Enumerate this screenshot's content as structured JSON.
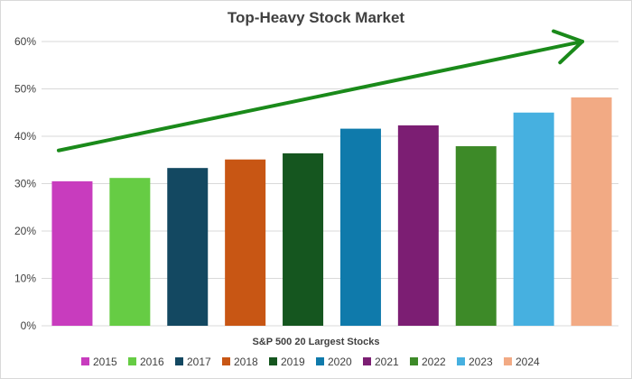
{
  "chart_data": {
    "type": "bar",
    "title": "Top-Heavy Stock Market",
    "xlabel": "S&P 500 20 Largest Stocks",
    "ylabel": "",
    "ylim": [
      0,
      60
    ],
    "y_ticks": [
      "0%",
      "10%",
      "20%",
      "30%",
      "40%",
      "50%",
      "60%"
    ],
    "y_tick_values": [
      0,
      10,
      20,
      30,
      40,
      50,
      60
    ],
    "grid": true,
    "legend_position": "bottom",
    "trend_arrow": {
      "start": [
        2015,
        37
      ],
      "end": [
        2024,
        60
      ],
      "color": "#1a8a1a"
    },
    "categories": [
      "2015",
      "2016",
      "2017",
      "2018",
      "2019",
      "2020",
      "2021",
      "2022",
      "2023",
      "2024"
    ],
    "series": [
      {
        "name": "2015",
        "value": 30.5,
        "color": "#c83cbe"
      },
      {
        "name": "2016",
        "value": 31.2,
        "color": "#66cc44"
      },
      {
        "name": "2017",
        "value": 33.3,
        "color": "#134861"
      },
      {
        "name": "2018",
        "value": 35.1,
        "color": "#c85614"
      },
      {
        "name": "2019",
        "value": 36.4,
        "color": "#15561f"
      },
      {
        "name": "2020",
        "value": 41.6,
        "color": "#0f7aab"
      },
      {
        "name": "2021",
        "value": 42.3,
        "color": "#7c1e73"
      },
      {
        "name": "2022",
        "value": 37.9,
        "color": "#3d8a28"
      },
      {
        "name": "2023",
        "value": 45.0,
        "color": "#46b0e0"
      },
      {
        "name": "2024",
        "value": 48.2,
        "color": "#f2aa84"
      }
    ]
  }
}
